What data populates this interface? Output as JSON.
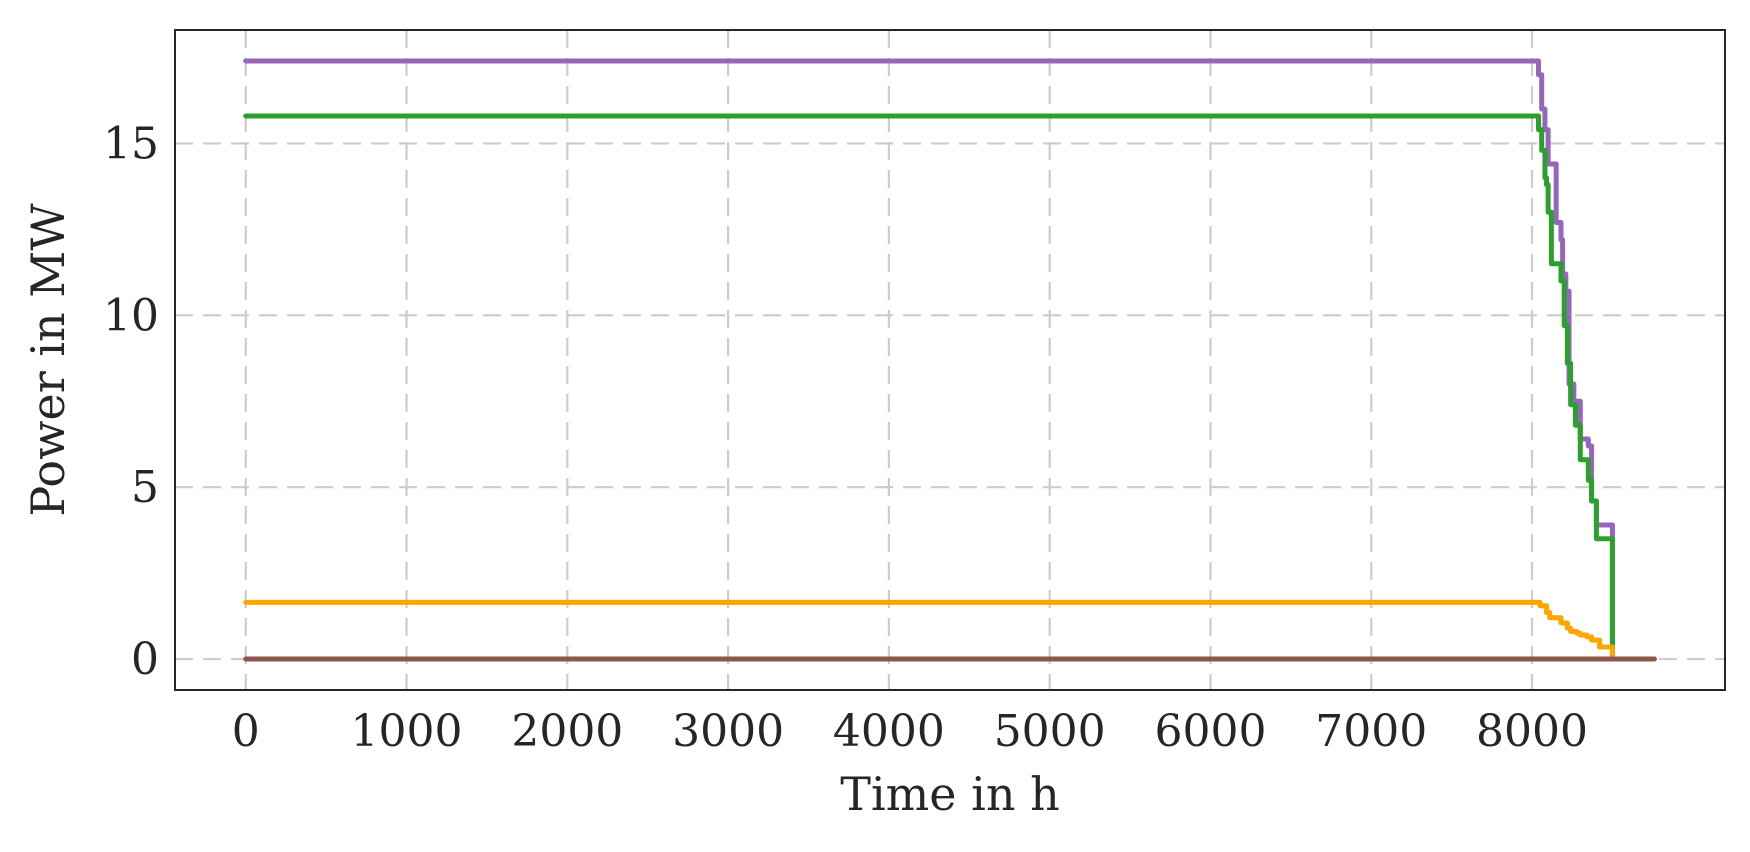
{
  "chart_data": {
    "type": "line",
    "title": "",
    "xlabel": "Time in h",
    "ylabel": "Power in MW",
    "xlim": [
      -440,
      9200
    ],
    "ylim": [
      -0.9,
      18.3
    ],
    "xticks": [
      0,
      1000,
      2000,
      3000,
      4000,
      5000,
      6000,
      7000,
      8000
    ],
    "yticks": [
      0,
      5,
      10,
      15
    ],
    "grid": true,
    "grid_style": "dashed",
    "legend": "none",
    "series": [
      {
        "color": "#9467bd",
        "x": [
          0,
          8020,
          8040,
          8060,
          8080,
          8100,
          8150,
          8180,
          8190,
          8210,
          8230,
          8260,
          8300,
          8350,
          8370,
          8400,
          8500,
          8500,
          8760
        ],
        "y": [
          17.4,
          17.4,
          17.0,
          16.0,
          15.4,
          14.4,
          12.7,
          12.2,
          11.2,
          10.7,
          8.0,
          7.5,
          6.4,
          6.2,
          4.6,
          3.9,
          3.9,
          0,
          0
        ]
      },
      {
        "color": "#2ca02c",
        "x": [
          0,
          8020,
          8040,
          8060,
          8080,
          8090,
          8100,
          8120,
          8160,
          8180,
          8200,
          8220,
          8240,
          8270,
          8300,
          8350,
          8370,
          8400,
          8480,
          8500,
          8500,
          8760
        ],
        "y": [
          15.8,
          15.8,
          15.4,
          14.8,
          14.0,
          13.8,
          13.0,
          11.5,
          11.5,
          11.0,
          9.7,
          8.6,
          7.4,
          6.8,
          5.8,
          5.2,
          4.6,
          3.5,
          3.5,
          3.5,
          0,
          0
        ]
      },
      {
        "color": "#ffa500",
        "x": [
          0,
          8020,
          8050,
          8090,
          8110,
          8160,
          8180,
          8220,
          8240,
          8280,
          8300,
          8340,
          8370,
          8420,
          8500,
          8500,
          8760
        ],
        "y": [
          1.65,
          1.65,
          1.55,
          1.35,
          1.2,
          1.2,
          1.05,
          0.9,
          0.8,
          0.75,
          0.7,
          0.65,
          0.55,
          0.35,
          0.35,
          0,
          0
        ]
      },
      {
        "color": "#8c564b",
        "x": [
          0,
          8760
        ],
        "y": [
          0,
          0
        ]
      }
    ]
  }
}
